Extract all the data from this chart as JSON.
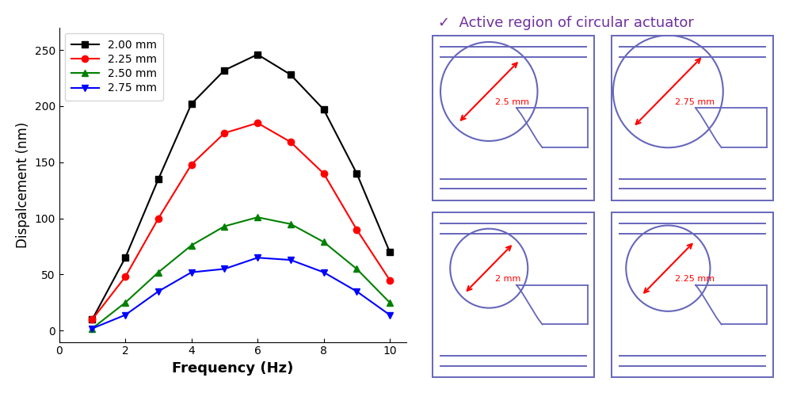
{
  "frequencies": [
    1,
    2,
    3,
    4,
    5,
    6,
    7,
    8,
    9,
    10
  ],
  "series": [
    {
      "label": "2.00 mm",
      "color": "black",
      "marker": "s",
      "values": [
        10,
        65,
        135,
        202,
        232,
        246,
        228,
        197,
        140,
        70
      ]
    },
    {
      "label": "2.25 mm",
      "color": "red",
      "marker": "o",
      "values": [
        10,
        48,
        100,
        148,
        176,
        185,
        168,
        140,
        90,
        45
      ]
    },
    {
      "label": "2.50 mm",
      "color": "green",
      "marker": "^",
      "values": [
        2,
        25,
        52,
        76,
        93,
        101,
        95,
        79,
        55,
        25
      ]
    },
    {
      "label": "2.75 mm",
      "color": "blue",
      "marker": "v",
      "values": [
        2,
        14,
        35,
        52,
        55,
        65,
        63,
        52,
        35,
        14
      ]
    }
  ],
  "xlabel": "Frequency (Hz)",
  "ylabel": "Dispalcement (nm)",
  "xlim": [
    0.5,
    10.5
  ],
  "ylim": [
    -10,
    270
  ],
  "xticks": [
    0,
    2,
    4,
    6,
    8,
    10
  ],
  "yticks": [
    0,
    50,
    100,
    150,
    200,
    250
  ],
  "annotation_title": "✓  Active region of circular actuator",
  "annotation_title_color": "#7030A0",
  "diagram_color": "#6666BB",
  "arrow_color": "red",
  "diagram_labels": [
    "2.5 mm",
    "2.75 mm",
    "2 mm",
    "2.25 mm"
  ],
  "diagram_circle_r": [
    0.3,
    0.34,
    0.24,
    0.26
  ]
}
